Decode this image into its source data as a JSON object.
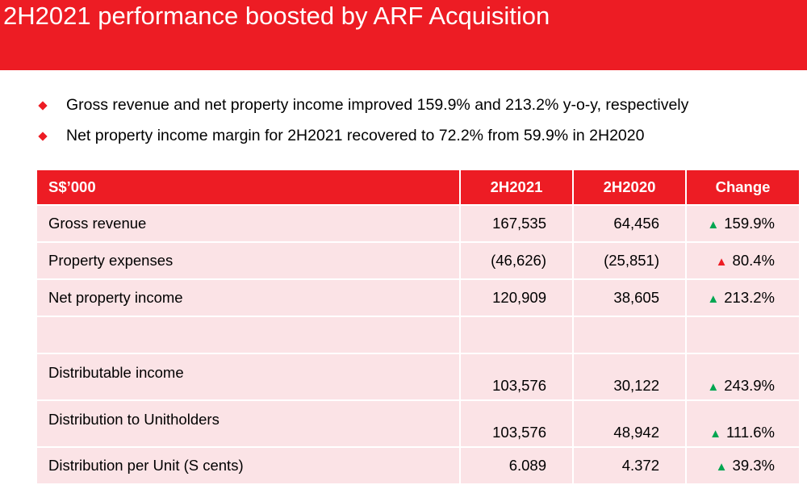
{
  "header": {
    "title": "2H2021 performance boosted by ARF Acquisition"
  },
  "bullets": [
    "Gross revenue and net property income improved 159.9% and 213.2% y-o-y, respectively",
    "Net property income margin for 2H2021 recovered to 72.2% from 59.9% in 2H2020"
  ],
  "table": {
    "headers": [
      "S$’000",
      "2H2021",
      "2H2020",
      "Change"
    ],
    "rows": [
      {
        "label": "Gross revenue",
        "v2021": "167,535",
        "v2020": "64,456",
        "change": "159.9%",
        "direction": "up-green"
      },
      {
        "label": "Property expenses",
        "v2021": "(46,626)",
        "v2020": "(25,851)",
        "change": "80.4%",
        "direction": "up-red"
      },
      {
        "label": "Net property income",
        "v2021": "120,909",
        "v2020": "38,605",
        "change": "213.2%",
        "direction": "up-green"
      },
      {
        "label": "",
        "v2021": "",
        "v2020": "",
        "change": "",
        "direction": ""
      },
      {
        "label": "Distributable income",
        "v2021": "103,576",
        "v2020": "30,122",
        "change": "243.9%",
        "direction": "up-green"
      },
      {
        "label": "Distribution to Unitholders",
        "v2021": "103,576",
        "v2020": "48,942",
        "change": "111.6%",
        "direction": "up-green"
      },
      {
        "label": "Distribution per Unit (S cents)",
        "v2021": "6.089",
        "v2020": "4.372",
        "change": "39.3%",
        "direction": "up-green"
      }
    ]
  },
  "colors": {
    "brand_red": "#ed1c24",
    "row_pink": "#fbe3e6",
    "up_green": "#00a651"
  }
}
